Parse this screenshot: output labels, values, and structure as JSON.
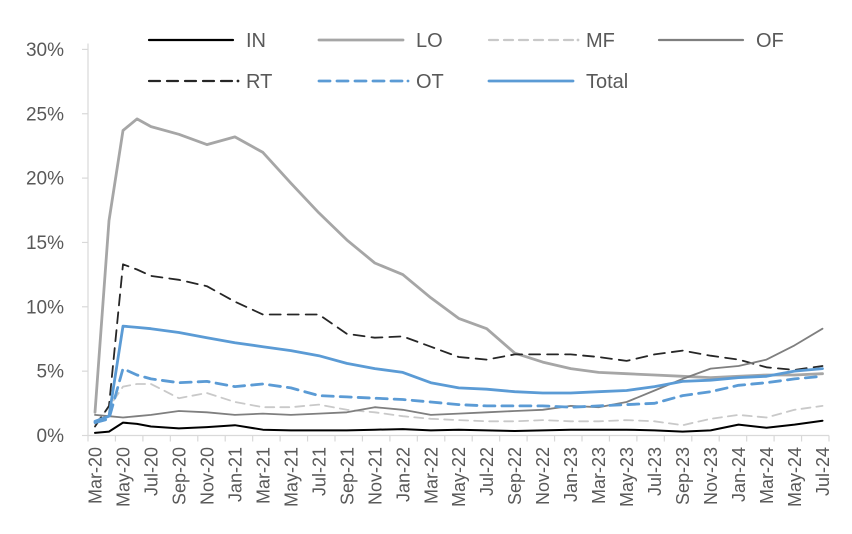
{
  "chart_data": {
    "type": "line",
    "title": "",
    "xlabel": "",
    "ylabel": "",
    "ylim": [
      0,
      30
    ],
    "grid": false,
    "legend_position": "top",
    "y_tick_labels": [
      "0%",
      "5%",
      "10%",
      "15%",
      "20%",
      "25%",
      "30%"
    ],
    "y_tick_values": [
      0,
      5,
      10,
      15,
      20,
      25,
      30
    ],
    "x_tick_labels": [
      "Mar-20",
      "May-20",
      "Jul-20",
      "Sep-20",
      "Nov-20",
      "Jan-21",
      "Mar-21",
      "May-21",
      "Jul-21",
      "Sep-21",
      "Nov-21",
      "Jan-22",
      "Mar-22",
      "May-22",
      "Jul-22",
      "Sep-22",
      "Nov-22",
      "Jan-23",
      "Mar-23",
      "May-23",
      "Jul-23",
      "Sep-23",
      "Nov-23",
      "Jan-24",
      "Mar-24",
      "May-24",
      "Jul-24"
    ],
    "x_months": [
      0,
      1,
      2,
      3,
      4,
      6,
      8,
      10,
      12,
      14,
      16,
      18,
      20,
      22,
      24,
      26,
      28,
      30,
      32,
      34,
      36,
      38,
      40,
      42,
      44,
      46,
      48,
      50,
      52
    ],
    "x_month_names": [
      "Mar-20",
      "Apr-20",
      "May-20",
      "Jun-20",
      "Jul-20",
      "Sep-20",
      "Nov-20",
      "Jan-21",
      "Mar-21",
      "May-21",
      "Jul-21",
      "Sep-21",
      "Nov-21",
      "Jan-22",
      "Mar-22",
      "May-22",
      "Jul-22",
      "Sep-22",
      "Nov-22",
      "Jan-23",
      "Mar-23",
      "May-23",
      "Jul-23",
      "Sep-23",
      "Nov-23",
      "Jan-24",
      "Mar-24",
      "May-24",
      "Jul-24"
    ],
    "series": [
      {
        "name": "IN",
        "color": "#000000",
        "dash": "",
        "width": 2,
        "values": [
          0.2,
          0.3,
          1.0,
          0.9,
          0.7,
          0.55,
          0.65,
          0.8,
          0.45,
          0.4,
          0.4,
          0.4,
          0.45,
          0.5,
          0.4,
          0.45,
          0.4,
          0.35,
          0.4,
          0.45,
          0.45,
          0.45,
          0.4,
          0.3,
          0.4,
          0.85,
          0.6,
          0.85,
          1.15
        ]
      },
      {
        "name": "LO",
        "color": "#a6a6a6",
        "dash": "",
        "width": 2.8,
        "values": [
          1.8,
          16.7,
          23.7,
          24.6,
          24.0,
          23.4,
          22.6,
          23.2,
          22.0,
          19.6,
          17.3,
          15.2,
          13.4,
          12.5,
          10.7,
          9.1,
          8.3,
          6.4,
          5.7,
          5.2,
          4.9,
          4.8,
          4.7,
          4.6,
          4.5,
          4.6,
          4.7,
          4.7,
          4.8
        ]
      },
      {
        "name": "MF",
        "color": "#c9c9c9",
        "dash": "9,6",
        "width": 1.8,
        "values": [
          0.9,
          2.2,
          3.8,
          4.0,
          4.0,
          2.9,
          3.3,
          2.6,
          2.2,
          2.2,
          2.4,
          2.0,
          1.8,
          1.5,
          1.3,
          1.2,
          1.1,
          1.1,
          1.2,
          1.1,
          1.1,
          1.2,
          1.1,
          0.8,
          1.3,
          1.6,
          1.4,
          2.0,
          2.3
        ]
      },
      {
        "name": "OF",
        "color": "#7f7f7f",
        "dash": "",
        "width": 1.8,
        "values": [
          1.6,
          1.5,
          1.4,
          1.5,
          1.6,
          1.9,
          1.8,
          1.6,
          1.7,
          1.6,
          1.7,
          1.8,
          2.2,
          2.0,
          1.6,
          1.7,
          1.8,
          1.9,
          2.0,
          2.3,
          2.2,
          2.6,
          3.5,
          4.4,
          5.2,
          5.4,
          5.9,
          7.0,
          8.3
        ]
      },
      {
        "name": "RT",
        "color": "#262626",
        "dash": "11,7",
        "width": 1.8,
        "values": [
          0.7,
          2.3,
          13.3,
          12.9,
          12.4,
          12.1,
          11.6,
          10.4,
          9.4,
          9.4,
          9.4,
          7.9,
          7.6,
          7.7,
          6.9,
          6.1,
          5.9,
          6.3,
          6.3,
          6.3,
          6.1,
          5.8,
          6.3,
          6.6,
          6.2,
          5.9,
          5.3,
          5.1,
          5.4
        ]
      },
      {
        "name": "OT",
        "color": "#5b9bd5",
        "dash": "11,7",
        "width": 2.8,
        "values": [
          1.0,
          1.3,
          5.2,
          4.7,
          4.4,
          4.1,
          4.2,
          3.8,
          4.0,
          3.7,
          3.1,
          3.0,
          2.9,
          2.8,
          2.6,
          2.4,
          2.3,
          2.3,
          2.3,
          2.2,
          2.3,
          2.4,
          2.5,
          3.1,
          3.4,
          3.9,
          4.1,
          4.4,
          4.6
        ]
      },
      {
        "name": "Total",
        "color": "#5b9bd5",
        "dash": "",
        "width": 2.8,
        "values": [
          1.1,
          1.5,
          8.5,
          8.4,
          8.3,
          8.0,
          7.6,
          7.2,
          6.9,
          6.6,
          6.2,
          5.6,
          5.2,
          4.9,
          4.1,
          3.7,
          3.6,
          3.4,
          3.3,
          3.3,
          3.4,
          3.5,
          3.8,
          4.2,
          4.3,
          4.5,
          4.6,
          5.0,
          5.2
        ]
      }
    ],
    "legend_entries": [
      "IN",
      "LO",
      "MF",
      "OF",
      "RT",
      "OT",
      "Total"
    ]
  },
  "colors": {
    "axis_line": "#d9d9d9",
    "tick_label": "#595959",
    "legend_label": "#595959",
    "accent_blue": "#5b9bd5",
    "background": "#ffffff"
  }
}
